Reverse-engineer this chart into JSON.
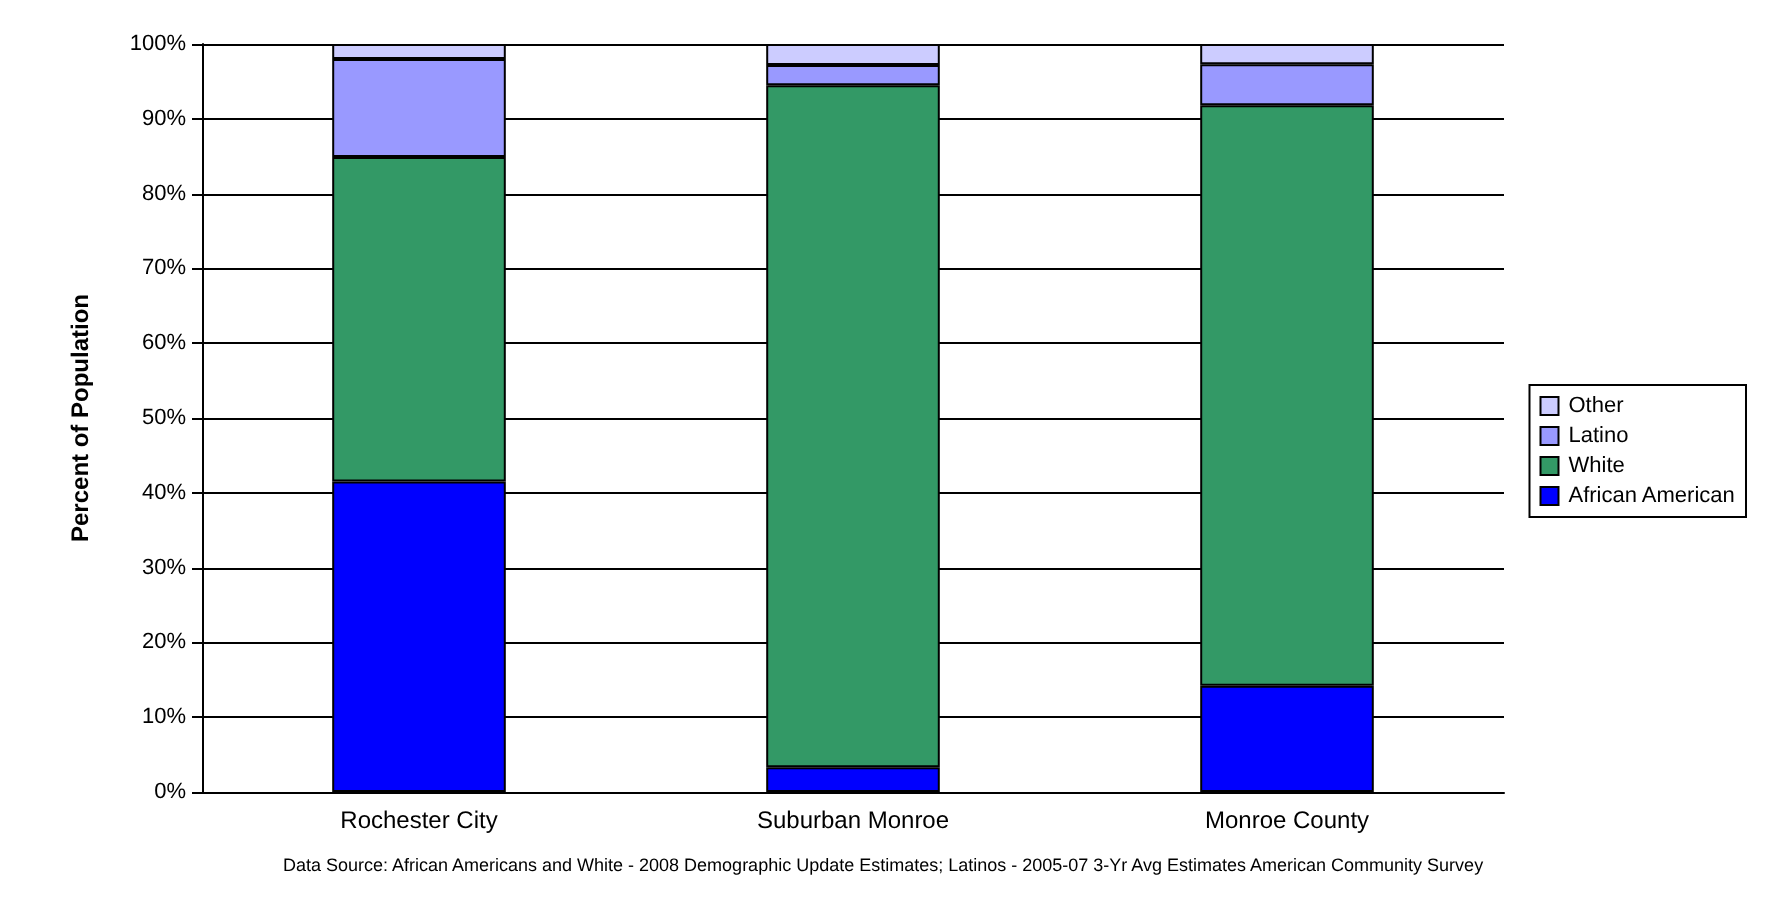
{
  "chart_data": {
    "type": "bar",
    "stacked": true,
    "ylabel": "Percent of Population",
    "categories": [
      "Rochester City",
      "Suburban Monroe",
      "Monroe County"
    ],
    "series": [
      {
        "name": "African American",
        "color": "#0000ff",
        "values": [
          41.5,
          3.3,
          14.2
        ]
      },
      {
        "name": "White",
        "color": "#339966",
        "values": [
          43.4,
          91.2,
          77.6
        ]
      },
      {
        "name": "Latino",
        "color": "#9999ff",
        "values": [
          13.1,
          2.7,
          5.5
        ]
      },
      {
        "name": "Other",
        "color": "#ccccff",
        "values": [
          2.0,
          2.8,
          2.7
        ]
      }
    ],
    "ylim": [
      0,
      100
    ],
    "yticks": [
      {
        "value": 0,
        "label": "0%"
      },
      {
        "value": 10,
        "label": "10%"
      },
      {
        "value": 20,
        "label": "20%"
      },
      {
        "value": 30,
        "label": "30%"
      },
      {
        "value": 40,
        "label": "40%"
      },
      {
        "value": 50,
        "label": "50%"
      },
      {
        "value": 60,
        "label": "60%"
      },
      {
        "value": 70,
        "label": "70%"
      },
      {
        "value": 80,
        "label": "80%"
      },
      {
        "value": 90,
        "label": "90%"
      },
      {
        "value": 100,
        "label": "100%"
      }
    ],
    "grid": "y",
    "legend": "right",
    "annotations": [
      "Data Source: African Americans and White - 2008 Demographic Update Estimates; Latinos - 2005-07 3-Yr Avg Estimates American Community Survey"
    ]
  }
}
